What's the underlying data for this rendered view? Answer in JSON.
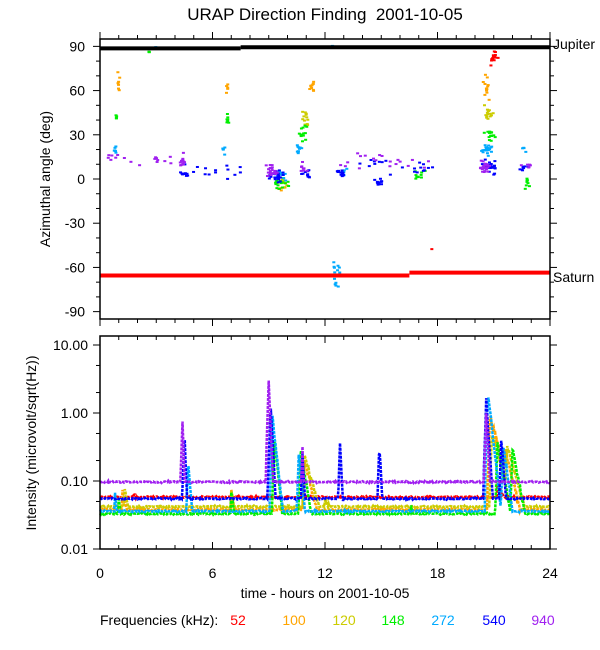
{
  "chart_data": [
    {
      "type": "scatter",
      "title": "URAP Direction Finding  2001-10-05",
      "ylabel": "Azimuthal angle (deg)",
      "xlim": [
        0,
        24
      ],
      "ylim": [
        -95,
        95
      ],
      "yticks": [
        90,
        60,
        30,
        0,
        -30,
        -60,
        -90
      ],
      "reference_lines": [
        {
          "label": "Jupiter",
          "color": "#000000",
          "segments": [
            [
              0,
              7.5,
              88.6
            ],
            [
              7.5,
              24,
              89.4
            ]
          ]
        },
        {
          "label": "Saturn",
          "color": "#ff0000",
          "segments": [
            [
              0,
              16.5,
              -65.5
            ],
            [
              16.5,
              24,
              -63.5
            ]
          ]
        }
      ],
      "clusters_note": "clusters: [hour, angle_deg, hour_spread, angle_spread, n_points]",
      "series": [
        {
          "name": "52",
          "color": "#ff0000",
          "clusters": [
            [
              21.0,
              82,
              0.5,
              8,
              16
            ],
            [
              17.7,
              -48,
              0.05,
              1,
              1
            ]
          ]
        },
        {
          "name": "100",
          "color": "#ffa500",
          "clusters": [
            [
              1.0,
              65,
              0.15,
              10,
              7
            ],
            [
              6.8,
              62,
              0.15,
              6,
              5
            ],
            [
              11.3,
              62,
              0.3,
              8,
              10
            ],
            [
              20.6,
              62,
              0.25,
              12,
              12
            ],
            [
              9.6,
              -5,
              0.5,
              4,
              8
            ]
          ]
        },
        {
          "name": "120",
          "color": "#cccc00",
          "clusters": [
            [
              11.0,
              42,
              0.25,
              8,
              12
            ],
            [
              20.7,
              45,
              0.3,
              8,
              14
            ],
            [
              9.8,
              -3,
              0.5,
              5,
              10
            ]
          ]
        },
        {
          "name": "148",
          "color": "#00ee00",
          "clusters": [
            [
              0.9,
              40,
              0.1,
              4,
              4
            ],
            [
              2.6,
              86,
              0.1,
              1,
              3
            ],
            [
              6.8,
              40,
              0.1,
              6,
              8
            ],
            [
              10.8,
              32,
              0.3,
              8,
              14
            ],
            [
              9.6,
              -2,
              0.6,
              5,
              18
            ],
            [
              17.0,
              3,
              0.5,
              4,
              10
            ],
            [
              20.8,
              30,
              0.4,
              7,
              18
            ],
            [
              22.8,
              -3,
              0.2,
              6,
              8
            ]
          ]
        },
        {
          "name": "272",
          "color": "#00aaff",
          "clusters": [
            [
              0.8,
              20,
              0.1,
              4,
              6
            ],
            [
              3.0,
              89,
              0.05,
              2,
              3
            ],
            [
              6.6,
              20,
              0.1,
              4,
              5
            ],
            [
              9.7,
              3,
              0.6,
              5,
              18
            ],
            [
              10.6,
              20,
              0.2,
              5,
              10
            ],
            [
              12.6,
              -65,
              0.3,
              22,
              14
            ],
            [
              12.4,
              90,
              0.05,
              1,
              3
            ],
            [
              13.0,
              5,
              0.2,
              4,
              6
            ],
            [
              20.7,
              20,
              0.4,
              6,
              22
            ],
            [
              22.6,
              20,
              0.2,
              3,
              4
            ]
          ]
        },
        {
          "name": "540",
          "color": "#0000ff",
          "clusters": [
            [
              4.5,
              4,
              0.3,
              4,
              10
            ],
            [
              9.4,
              2,
              0.6,
              6,
              24
            ],
            [
              11.0,
              3,
              0.4,
              4,
              10
            ],
            [
              12.9,
              4,
              0.3,
              4,
              12
            ],
            [
              14.9,
              -2,
              0.4,
              3,
              12
            ],
            [
              17.0,
              5,
              0.6,
              5,
              6
            ],
            [
              20.8,
              8,
              0.5,
              6,
              28
            ],
            [
              22.6,
              8,
              0.4,
              5,
              8
            ],
            [
              6.0,
              5,
              3.0,
              8,
              14
            ],
            [
              15.5,
              8,
              3.5,
              10,
              14
            ]
          ]
        },
        {
          "name": "940",
          "color": "#a020f0",
          "clusters": [
            [
              0.6,
              14,
              0.5,
              5,
              6
            ],
            [
              4.4,
              12,
              0.2,
              8,
              12
            ],
            [
              9.1,
              5,
              0.5,
              6,
              20
            ],
            [
              10.8,
              8,
              0.3,
              6,
              8
            ],
            [
              20.5,
              8,
              0.4,
              6,
              24
            ],
            [
              3.0,
              12,
              3.0,
              8,
              12
            ],
            [
              15.0,
              12,
              4.0,
              8,
              20
            ],
            [
              23.0,
              10,
              0.8,
              6,
              6
            ]
          ]
        }
      ]
    },
    {
      "type": "line",
      "ylabel": "Intensity (microvolt/sqrt(Hz))",
      "xlabel": "time - hours on 2001-10-05",
      "xlim": [
        0,
        24
      ],
      "xticks": [
        0,
        6,
        12,
        18,
        24
      ],
      "ylim": [
        0.01,
        10
      ],
      "yscale": "log",
      "yticks": [
        "10.00",
        "1.00",
        "0.10",
        "0.01"
      ],
      "events_note": "events: [hour, peak_intensity, decay_hours]",
      "series": [
        {
          "name": "52",
          "color": "#ff0000",
          "baseline": 0.058,
          "events": [
            [
              1.8,
              0.066,
              2.5
            ],
            [
              10.8,
              0.068,
              1.5
            ],
            [
              21.2,
              0.085,
              2.0
            ]
          ]
        },
        {
          "name": "100",
          "color": "#ffa500",
          "baseline": 0.038,
          "events": [
            [
              1.2,
              0.07,
              0.8
            ],
            [
              7.0,
              0.075,
              0.6
            ],
            [
              10.9,
              0.2,
              0.9
            ],
            [
              20.8,
              0.9,
              1.0
            ],
            [
              21.6,
              0.3,
              0.9
            ]
          ]
        },
        {
          "name": "120",
          "color": "#cccc00",
          "baseline": 0.042,
          "events": [
            [
              1.3,
              0.075,
              0.8
            ],
            [
              7.0,
              0.07,
              0.7
            ],
            [
              10.9,
              0.25,
              1.0
            ],
            [
              12.0,
              0.05,
              3.0
            ],
            [
              20.9,
              0.5,
              1.0
            ],
            [
              21.7,
              0.35,
              1.0
            ]
          ]
        },
        {
          "name": "148",
          "color": "#00ee00",
          "baseline": 0.033,
          "events": [
            [
              1.0,
              0.06,
              0.4
            ],
            [
              7.0,
              0.07,
              0.5
            ],
            [
              9.3,
              0.4,
              0.4
            ],
            [
              10.7,
              0.3,
              0.6
            ],
            [
              16.6,
              0.045,
              0.4
            ],
            [
              17.3,
              0.04,
              0.3
            ],
            [
              21.2,
              0.35,
              0.7
            ],
            [
              22.0,
              0.3,
              0.7
            ]
          ]
        },
        {
          "name": "272",
          "color": "#00aaff",
          "baseline": 0.036,
          "events": [
            [
              0.8,
              0.07,
              0.3
            ],
            [
              4.7,
              0.2,
              0.3
            ],
            [
              9.2,
              0.9,
              0.4
            ],
            [
              10.6,
              0.25,
              0.4
            ],
            [
              20.7,
              2.0,
              0.4
            ],
            [
              21.5,
              0.35,
              0.5
            ]
          ]
        },
        {
          "name": "540",
          "color": "#0000ff",
          "baseline": 0.055,
          "events": [
            [
              4.5,
              0.5,
              0.15
            ],
            [
              9.1,
              1.3,
              0.2
            ],
            [
              10.8,
              0.25,
              0.2
            ],
            [
              12.8,
              0.35,
              0.2
            ],
            [
              14.9,
              0.35,
              0.2
            ],
            [
              20.6,
              1.5,
              0.25
            ],
            [
              21.4,
              0.4,
              0.3
            ]
          ]
        },
        {
          "name": "940",
          "color": "#a020f0",
          "baseline": 0.097,
          "events": [
            [
              4.4,
              0.8,
              0.12
            ],
            [
              9.0,
              3.0,
              0.15
            ],
            [
              10.8,
              0.3,
              0.12
            ],
            [
              20.6,
              1.0,
              0.2
            ],
            [
              22.9,
              0.12,
              0.1
            ]
          ]
        }
      ]
    }
  ],
  "legend": {
    "label": "Frequencies (kHz):",
    "items": [
      "52",
      "100",
      "120",
      "148",
      "272",
      "540",
      "940"
    ]
  }
}
